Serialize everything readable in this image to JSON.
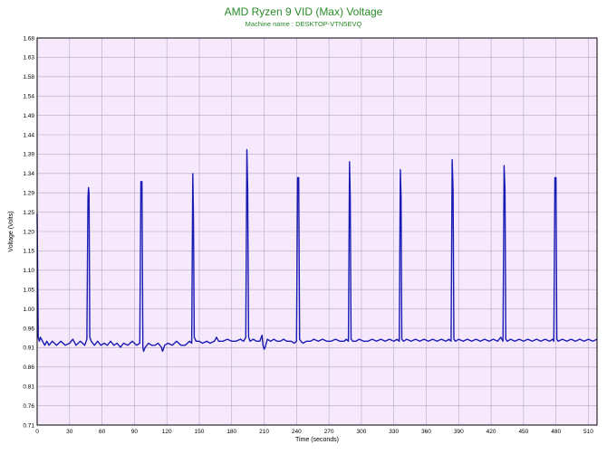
{
  "chart_data": {
    "type": "line",
    "title": "AMD Ryzen 9 VID (Max) Voltage",
    "subtitle": "Machine name : DESKTOP-VTN5EVQ",
    "xlabel": "Time (seconds)",
    "ylabel": "Voltage (Volts)",
    "xlim": [
      0,
      518
    ],
    "ylim": [
      0.71,
      1.68
    ],
    "x_ticks": [
      0,
      30,
      60,
      90,
      120,
      150,
      180,
      210,
      240,
      270,
      300,
      330,
      360,
      390,
      420,
      450,
      480,
      510
    ],
    "y_ticks": [
      "0.71",
      "0.76",
      "0.81",
      "0.86",
      "0.91",
      "0.96",
      "1.00",
      "1.05",
      "1.10",
      "1.15",
      "1.20",
      "1.25",
      "1.29",
      "1.34",
      "1.39",
      "1.44",
      "1.49",
      "1.54",
      "1.58",
      "1.63",
      "1.68"
    ],
    "grid": true,
    "colors": {
      "line": "#1a1ab4",
      "plot_background": "#f5e9fb",
      "grid": "#b8a8c8",
      "title": "#2a8a2a"
    },
    "series": [
      {
        "points": [
          [
            0,
            1.24
          ],
          [
            1,
            0.93
          ],
          [
            2,
            0.92
          ],
          [
            3,
            0.93
          ],
          [
            5,
            0.92
          ],
          [
            7,
            0.91
          ],
          [
            9,
            0.92
          ],
          [
            11,
            0.91
          ],
          [
            14,
            0.92
          ],
          [
            18,
            0.91
          ],
          [
            22,
            0.92
          ],
          [
            26,
            0.91
          ],
          [
            30,
            0.915
          ],
          [
            33,
            0.925
          ],
          [
            36,
            0.91
          ],
          [
            40,
            0.92
          ],
          [
            44,
            0.91
          ],
          [
            46,
            0.925
          ],
          [
            47,
            1.28
          ],
          [
            47.5,
            1.305
          ],
          [
            48,
            1.29
          ],
          [
            48.7,
            0.93
          ],
          [
            50,
            0.92
          ],
          [
            53,
            0.91
          ],
          [
            56,
            0.92
          ],
          [
            59,
            0.91
          ],
          [
            62,
            0.915
          ],
          [
            65,
            0.91
          ],
          [
            68,
            0.92
          ],
          [
            71,
            0.91
          ],
          [
            74,
            0.915
          ],
          [
            77,
            0.905
          ],
          [
            80,
            0.915
          ],
          [
            84,
            0.91
          ],
          [
            88,
            0.92
          ],
          [
            92,
            0.91
          ],
          [
            95,
            0.915
          ],
          [
            96,
            1.32
          ],
          [
            97,
            1.32
          ],
          [
            97.8,
            0.905
          ],
          [
            98.5,
            0.895
          ],
          [
            100,
            0.905
          ],
          [
            103,
            0.915
          ],
          [
            106,
            0.91
          ],
          [
            109,
            0.91
          ],
          [
            112,
            0.915
          ],
          [
            115,
            0.905
          ],
          [
            116,
            0.895
          ],
          [
            118,
            0.91
          ],
          [
            121,
            0.915
          ],
          [
            125,
            0.91
          ],
          [
            129,
            0.92
          ],
          [
            133,
            0.91
          ],
          [
            137,
            0.91
          ],
          [
            141,
            0.92
          ],
          [
            143,
            0.915
          ],
          [
            144,
            1.34
          ],
          [
            144.6,
            1.24
          ],
          [
            145.3,
            0.93
          ],
          [
            147,
            0.92
          ],
          [
            150,
            0.92
          ],
          [
            153,
            0.915
          ],
          [
            157,
            0.92
          ],
          [
            160,
            0.915
          ],
          [
            164,
            0.92
          ],
          [
            166,
            0.93
          ],
          [
            168,
            0.92
          ],
          [
            172,
            0.92
          ],
          [
            176,
            0.925
          ],
          [
            180,
            0.92
          ],
          [
            184,
            0.92
          ],
          [
            188,
            0.925
          ],
          [
            191,
            0.92
          ],
          [
            193,
            0.93
          ],
          [
            194,
            1.4
          ],
          [
            194.8,
            1.3
          ],
          [
            195.6,
            0.93
          ],
          [
            197,
            0.92
          ],
          [
            200,
            0.925
          ],
          [
            203,
            0.92
          ],
          [
            206,
            0.92
          ],
          [
            208,
            0.935
          ],
          [
            209,
            0.91
          ],
          [
            210,
            0.9
          ],
          [
            211,
            0.905
          ],
          [
            213,
            0.925
          ],
          [
            216,
            0.92
          ],
          [
            219,
            0.925
          ],
          [
            222,
            0.92
          ],
          [
            225,
            0.92
          ],
          [
            228,
            0.925
          ],
          [
            231,
            0.92
          ],
          [
            235,
            0.92
          ],
          [
            238,
            0.915
          ],
          [
            240,
            0.92
          ],
          [
            241,
            1.33
          ],
          [
            242,
            1.33
          ],
          [
            242.8,
            0.925
          ],
          [
            244,
            0.92
          ],
          [
            246,
            0.915
          ],
          [
            249,
            0.92
          ],
          [
            253,
            0.92
          ],
          [
            256,
            0.925
          ],
          [
            260,
            0.92
          ],
          [
            264,
            0.925
          ],
          [
            268,
            0.92
          ],
          [
            272,
            0.92
          ],
          [
            276,
            0.925
          ],
          [
            280,
            0.92
          ],
          [
            284,
            0.92
          ],
          [
            286,
            0.925
          ],
          [
            288,
            0.92
          ],
          [
            289,
            1.37
          ],
          [
            289.7,
            1.28
          ],
          [
            290.4,
            0.925
          ],
          [
            292,
            0.92
          ],
          [
            295,
            0.92
          ],
          [
            298,
            0.925
          ],
          [
            302,
            0.92
          ],
          [
            306,
            0.92
          ],
          [
            310,
            0.925
          ],
          [
            314,
            0.92
          ],
          [
            318,
            0.925
          ],
          [
            322,
            0.92
          ],
          [
            326,
            0.925
          ],
          [
            330,
            0.92
          ],
          [
            333,
            0.925
          ],
          [
            335,
            0.92
          ],
          [
            336,
            1.35
          ],
          [
            336.7,
            1.28
          ],
          [
            337.4,
            0.925
          ],
          [
            339,
            0.92
          ],
          [
            342,
            0.925
          ],
          [
            346,
            0.92
          ],
          [
            350,
            0.925
          ],
          [
            354,
            0.92
          ],
          [
            358,
            0.925
          ],
          [
            362,
            0.92
          ],
          [
            366,
            0.925
          ],
          [
            370,
            0.92
          ],
          [
            374,
            0.925
          ],
          [
            378,
            0.92
          ],
          [
            381,
            0.925
          ],
          [
            383,
            0.92
          ],
          [
            384,
            1.375
          ],
          [
            384.8,
            1.3
          ],
          [
            385.6,
            0.925
          ],
          [
            387,
            0.92
          ],
          [
            390,
            0.925
          ],
          [
            394,
            0.92
          ],
          [
            398,
            0.925
          ],
          [
            402,
            0.92
          ],
          [
            406,
            0.925
          ],
          [
            410,
            0.92
          ],
          [
            414,
            0.925
          ],
          [
            418,
            0.92
          ],
          [
            422,
            0.925
          ],
          [
            426,
            0.92
          ],
          [
            429,
            0.93
          ],
          [
            431,
            0.92
          ],
          [
            432,
            1.36
          ],
          [
            432.8,
            1.3
          ],
          [
            433.6,
            0.925
          ],
          [
            435,
            0.92
          ],
          [
            438,
            0.925
          ],
          [
            442,
            0.92
          ],
          [
            446,
            0.925
          ],
          [
            450,
            0.92
          ],
          [
            454,
            0.925
          ],
          [
            458,
            0.92
          ],
          [
            462,
            0.925
          ],
          [
            466,
            0.92
          ],
          [
            470,
            0.925
          ],
          [
            474,
            0.92
          ],
          [
            477,
            0.925
          ],
          [
            478,
            0.92
          ],
          [
            479,
            1.33
          ],
          [
            480,
            1.33
          ],
          [
            480.8,
            0.925
          ],
          [
            482,
            0.92
          ],
          [
            486,
            0.925
          ],
          [
            490,
            0.92
          ],
          [
            494,
            0.925
          ],
          [
            498,
            0.92
          ],
          [
            502,
            0.925
          ],
          [
            506,
            0.92
          ],
          [
            510,
            0.925
          ],
          [
            514,
            0.92
          ],
          [
            518,
            0.925
          ]
        ]
      }
    ]
  }
}
